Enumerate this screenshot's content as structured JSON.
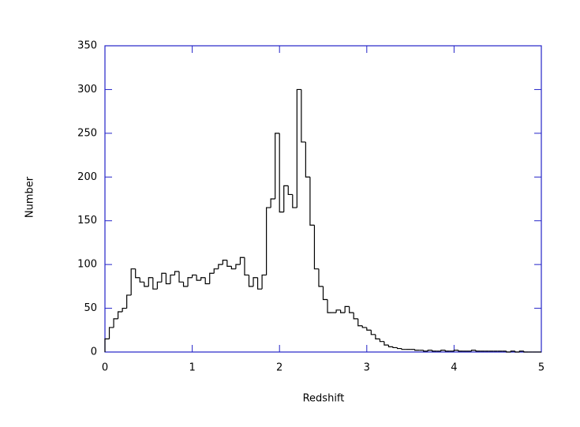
{
  "chart_data": {
    "type": "histogram",
    "xlabel": "Redshift",
    "ylabel": "Number",
    "bins": [
      0,
      0.05,
      0.1,
      0.15,
      0.2,
      0.25,
      0.3,
      0.35,
      0.4,
      0.45,
      0.5,
      0.55,
      0.6,
      0.65,
      0.7,
      0.75,
      0.8,
      0.85,
      0.9,
      0.95,
      1,
      1.05,
      1.1,
      1.15,
      1.2,
      1.25,
      1.3,
      1.35,
      1.4,
      1.45,
      1.5,
      1.55,
      1.6,
      1.65,
      1.7,
      1.75,
      1.8,
      1.85,
      1.9,
      1.95,
      2,
      2.05,
      2.1,
      2.15,
      2.2,
      2.25,
      2.3,
      2.35,
      2.4,
      2.45,
      2.5,
      2.55,
      2.6,
      2.65,
      2.7,
      2.75,
      2.8,
      2.85,
      2.9,
      2.95,
      3,
      3.05,
      3.1,
      3.15,
      3.2,
      3.25,
      3.3,
      3.35,
      3.4,
      3.45,
      3.5,
      3.55,
      3.6,
      3.65,
      3.7,
      3.75,
      3.8,
      3.85,
      3.9,
      3.95,
      4,
      4.05,
      4.1,
      4.15,
      4.2,
      4.25,
      4.3,
      4.35,
      4.4,
      4.45,
      4.5,
      4.55,
      4.6,
      4.65,
      4.7,
      4.75,
      4.8,
      4.85,
      4.9,
      4.95,
      5
    ],
    "values": [
      15,
      28,
      38,
      46,
      50,
      65,
      95,
      85,
      80,
      75,
      85,
      72,
      80,
      90,
      78,
      88,
      92,
      80,
      75,
      85,
      88,
      82,
      85,
      78,
      90,
      95,
      100,
      105,
      98,
      95,
      100,
      108,
      88,
      75,
      85,
      72,
      88,
      165,
      175,
      250,
      160,
      190,
      180,
      165,
      300,
      240,
      200,
      145,
      95,
      75,
      60,
      45,
      45,
      48,
      45,
      52,
      45,
      38,
      30,
      28,
      25,
      20,
      15,
      12,
      8,
      6,
      5,
      4,
      3,
      3,
      3,
      2,
      2,
      1,
      2,
      1,
      1,
      2,
      1,
      1,
      2,
      1,
      1,
      1,
      2,
      1,
      1,
      1,
      1,
      1,
      1,
      1,
      0,
      1,
      0,
      1,
      0,
      0,
      0,
      0
    ],
    "color": "#000000",
    "axis_color": "#2323c8",
    "xlim": [
      0,
      5
    ],
    "xticks": [
      0,
      1,
      2,
      3,
      4,
      5
    ],
    "ylim": [
      0,
      350
    ],
    "yticks": [
      0,
      50,
      100,
      150,
      200,
      250,
      300,
      350
    ]
  }
}
